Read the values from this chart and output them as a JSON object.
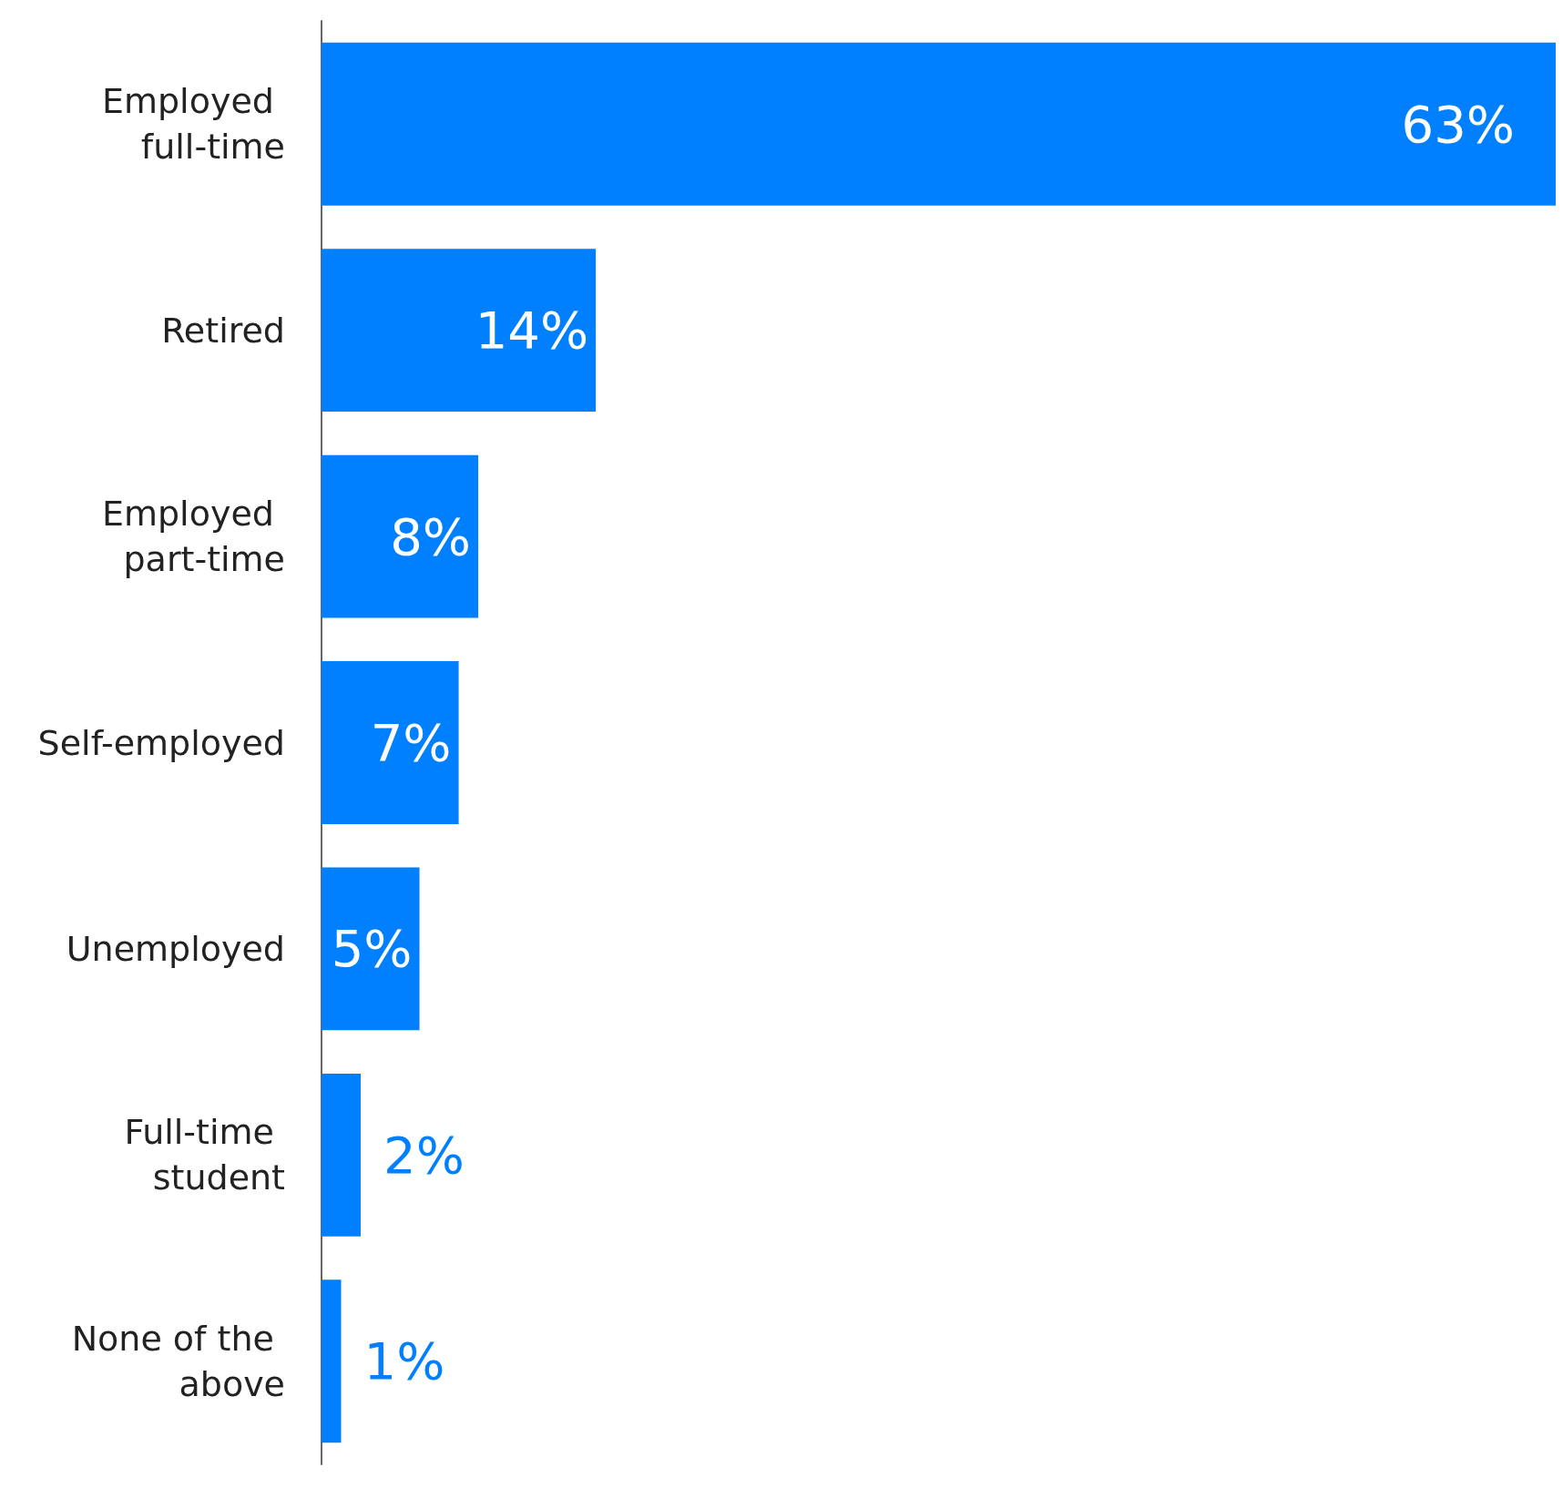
{
  "chart_data": {
    "type": "bar",
    "orientation": "horizontal",
    "categories": [
      "Employed full-time",
      "Retired",
      "Employed part-time",
      "Self-employed",
      "Unemployed",
      "Full-time student",
      "None of the above"
    ],
    "values": [
      63,
      14,
      8,
      7,
      5,
      2,
      1
    ],
    "value_labels": [
      "63%",
      "14%",
      "8%",
      "7%",
      "5%",
      "2%",
      "1%"
    ],
    "color": "#0080ff"
  }
}
